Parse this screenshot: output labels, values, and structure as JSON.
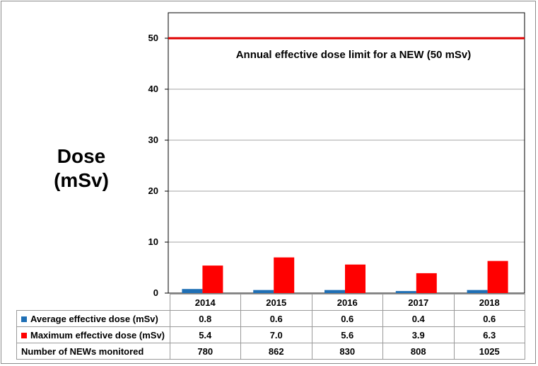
{
  "chart_data": {
    "type": "bar",
    "ylabel": "Dose\n(mSv)",
    "ylim": [
      0,
      55
    ],
    "yticks": [
      0,
      10,
      20,
      30,
      40,
      50
    ],
    "grid": true,
    "categories": [
      "2014",
      "2015",
      "2016",
      "2017",
      "2018"
    ],
    "series": [
      {
        "name": "Average effective dose (mSv)",
        "color": "#1f6fb5",
        "values": [
          0.8,
          0.6,
          0.6,
          0.4,
          0.6
        ],
        "labels": [
          "0.8",
          "0.6",
          "0.6",
          "0.4",
          "0.6"
        ]
      },
      {
        "name": "Maximum effective dose (mSv)",
        "color": "#ff0000",
        "values": [
          5.4,
          7.0,
          5.6,
          3.9,
          6.3
        ],
        "labels": [
          "5.4",
          "7.0",
          "5.6",
          "3.9",
          "6.3"
        ]
      }
    ],
    "table_rows": [
      {
        "name": "Number of NEWs monitored",
        "values": [
          "780",
          "862",
          "830",
          "808",
          "1025"
        ]
      }
    ],
    "reference_line": {
      "value": 50,
      "color": "#e00000",
      "label": "Annual effective dose limit for a NEW (50 mSv)"
    }
  }
}
